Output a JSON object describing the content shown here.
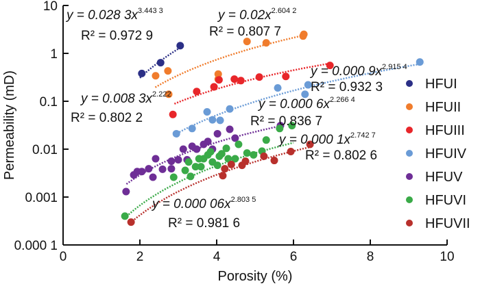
{
  "chart_data": {
    "type": "scatter",
    "xlabel": "Porosity (%)",
    "ylabel": "Permeability (mD)",
    "xlim": [
      0,
      10
    ],
    "ylim": [
      0.0001,
      10
    ],
    "yscale": "log",
    "xticks": [
      "0",
      "2",
      "4",
      "6",
      "8",
      "10"
    ],
    "yticks": [
      "0.000 1",
      "0.001",
      "0.01",
      "0.1",
      "1",
      "10"
    ],
    "grid": false,
    "legend_position": "right",
    "series": [
      {
        "name": "HFUI",
        "color": "#2b2f86",
        "fit": {
          "a": 0.0283,
          "b": 3.4433,
          "xrange": [
            2.0,
            3.1
          ],
          "equation": "y = 0.028 3x",
          "exponent": "3.443 3",
          "r2": "R² = 0.972 9"
        },
        "points": [
          [
            2.05,
            0.38
          ],
          [
            2.54,
            0.64
          ],
          [
            3.05,
            1.45
          ]
        ]
      },
      {
        "name": "HFUII",
        "color": "#f07c2c",
        "fit": {
          "a": 0.02,
          "b": 2.6042,
          "xrange": [
            2.4,
            6.3
          ],
          "equation": "y = 0.02x",
          "exponent": "2.604 2",
          "r2": "R² = 0.807 7"
        },
        "points": [
          [
            2.41,
            0.34
          ],
          [
            2.73,
            0.43
          ],
          [
            2.75,
            0.14
          ],
          [
            4.04,
            0.37
          ],
          [
            4.04,
            0.29
          ],
          [
            4.79,
            1.77
          ],
          [
            5.29,
            1.66
          ],
          [
            6.27,
            2.5
          ],
          [
            6.25,
            2.3
          ]
        ]
      },
      {
        "name": "HFUIII",
        "color": "#e8262a",
        "fit": {
          "a": 0.0083,
          "b": 2.222,
          "xrange": [
            2.9,
            7.0
          ],
          "equation": "y = 0.008 3x",
          "exponent": "2.222",
          "r2": "R² = 0.802 2"
        },
        "points": [
          [
            2.86,
            0.053
          ],
          [
            3.48,
            0.16
          ],
          [
            3.93,
            0.2
          ],
          [
            4.06,
            0.28
          ],
          [
            4.46,
            0.29
          ],
          [
            4.63,
            0.27
          ],
          [
            5.11,
            0.32
          ],
          [
            5.8,
            0.33
          ],
          [
            6.95,
            0.56
          ]
        ]
      },
      {
        "name": "HFUIV",
        "color": "#6a9bd6",
        "fit": {
          "a": 0.0009,
          "b": 2.9154,
          "xrange": [
            2.9,
            9.4
          ],
          "equation": "y = 0.000 9x",
          "exponent": "2.915 4",
          "r2": "R² = 0.932 3"
        },
        "points": [
          [
            2.95,
            0.021
          ],
          [
            3.36,
            0.027
          ],
          [
            3.75,
            0.06
          ],
          [
            3.89,
            0.041
          ],
          [
            4.09,
            0.04
          ],
          [
            4.34,
            0.069
          ],
          [
            5.59,
            0.19
          ],
          [
            6.3,
            0.14
          ],
          [
            6.38,
            0.22
          ],
          [
            9.29,
            0.66
          ]
        ]
      },
      {
        "name": "HFUV",
        "color": "#6e2e96",
        "fit": {
          "a": 0.0006,
          "b": 2.2664,
          "xrange": [
            1.65,
            5.7
          ],
          "equation": "y = 0.000 6x",
          "exponent": "2.266 4",
          "r2": "R² = 0.836 7"
        },
        "points": [
          [
            1.64,
            0.0013
          ],
          [
            1.84,
            0.0029
          ],
          [
            1.93,
            0.0034
          ],
          [
            2.05,
            0.0034
          ],
          [
            2.23,
            0.0039
          ],
          [
            2.34,
            0.0026
          ],
          [
            2.41,
            0.0063
          ],
          [
            2.59,
            0.0038
          ],
          [
            2.82,
            0.0056
          ],
          [
            2.82,
            0.0039
          ],
          [
            3.0,
            0.006
          ],
          [
            3.13,
            0.01
          ],
          [
            3.23,
            0.006
          ],
          [
            3.36,
            0.0115
          ],
          [
            3.48,
            0.01
          ],
          [
            3.66,
            0.0126
          ],
          [
            3.77,
            0.0145
          ],
          [
            3.89,
            0.01
          ],
          [
            4.02,
            0.021
          ],
          [
            4.34,
            0.026
          ],
          [
            4.48,
            0.017
          ],
          [
            5.66,
            0.031
          ]
        ]
      },
      {
        "name": "HFUVI",
        "color": "#3aaa48",
        "fit": {
          "a": 0.0001,
          "b": 2.7427,
          "xrange": [
            1.6,
            6.0
          ],
          "equation": "y = 0.000 1x",
          "exponent": "2.742 7",
          "r2": "R² = 0.802 6"
        },
        "points": [
          [
            1.61,
            0.0004
          ],
          [
            2.88,
            0.0026
          ],
          [
            3.18,
            0.0036
          ],
          [
            3.32,
            0.0027
          ],
          [
            3.27,
            0.0054
          ],
          [
            3.45,
            0.0043
          ],
          [
            3.54,
            0.0063
          ],
          [
            3.59,
            0.0043
          ],
          [
            3.66,
            0.0063
          ],
          [
            3.77,
            0.0076
          ],
          [
            3.84,
            0.0088
          ],
          [
            3.89,
            0.0054
          ],
          [
            4.02,
            0.0046
          ],
          [
            4.07,
            0.0071
          ],
          [
            4.13,
            0.008
          ],
          [
            4.25,
            0.0104
          ],
          [
            4.3,
            0.0063
          ],
          [
            4.48,
            0.0063
          ],
          [
            4.57,
            0.0126
          ],
          [
            4.79,
            0.0083
          ],
          [
            4.96,
            0.0076
          ],
          [
            5.18,
            0.0091
          ],
          [
            5.29,
            0.0155
          ],
          [
            5.64,
            0.027
          ],
          [
            5.96,
            0.031
          ]
        ]
      },
      {
        "name": "HFUVII",
        "color": "#b8302c",
        "fit": {
          "a": 6e-05,
          "b": 2.8035,
          "xrange": [
            1.8,
            6.5
          ],
          "equation": "y = 0.000 06x",
          "exponent": "2.803 5",
          "r2": "R² = 0.981 6"
        },
        "points": [
          [
            1.77,
            0.0003
          ],
          [
            4.16,
            0.0028
          ],
          [
            4.21,
            0.0039
          ],
          [
            4.38,
            0.0048
          ],
          [
            4.66,
            0.0046
          ],
          [
            4.75,
            0.0056
          ],
          [
            5.23,
            0.0071
          ],
          [
            5.5,
            0.0058
          ],
          [
            5.93,
            0.0089
          ],
          [
            6.43,
            0.0126
          ]
        ]
      }
    ]
  }
}
